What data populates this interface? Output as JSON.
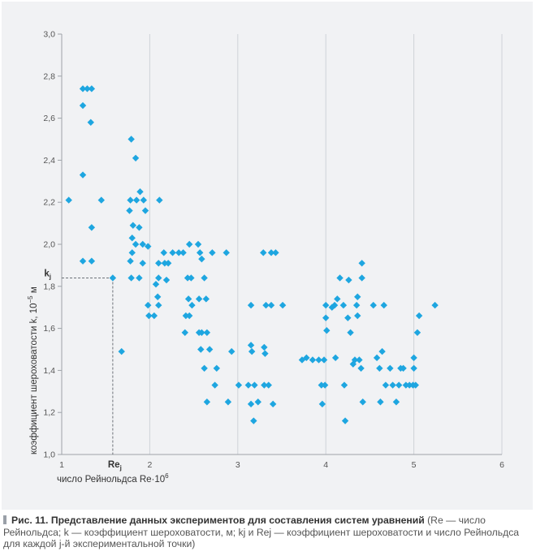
{
  "chart_data": {
    "type": "scatter",
    "xlabel": "число Рейнольдса Re·10",
    "xlabel_sup": "6",
    "ylabel": "коэффициент шероховатости k, 10",
    "ylabel_sup": "−5",
    "ylabel_unit": " м",
    "xlim": [
      1,
      6
    ],
    "ylim": [
      1.0,
      3.0
    ],
    "x_ticks": [
      1,
      2,
      3,
      4,
      5,
      6
    ],
    "x_tick_labels": [
      "1",
      "2",
      "3",
      "4",
      "5",
      "6"
    ],
    "y_ticks": [
      1.0,
      1.2,
      1.4,
      1.6,
      1.8,
      2.0,
      2.2,
      2.4,
      2.6,
      2.8,
      3.0
    ],
    "y_tick_labels": [
      "1,0",
      "1,2",
      "1,4",
      "1,6",
      "1,8",
      "2,0",
      "2,2",
      "2,4",
      "2,6",
      "2,8",
      "3,0"
    ],
    "grid": "vertical",
    "marker_color": "#1ea6e0",
    "reference_point": {
      "x": 1.58,
      "y": 1.84,
      "x_label": "Re",
      "x_label_sub": "j",
      "y_label": "k",
      "y_label_sub": "j"
    },
    "points": [
      [
        1.08,
        2.21
      ],
      [
        1.24,
        2.74
      ],
      [
        1.29,
        2.74
      ],
      [
        1.34,
        2.74
      ],
      [
        1.24,
        2.66
      ],
      [
        1.33,
        2.58
      ],
      [
        1.24,
        2.33
      ],
      [
        1.45,
        2.21
      ],
      [
        1.34,
        2.08
      ],
      [
        1.24,
        1.92
      ],
      [
        1.34,
        1.92
      ],
      [
        1.58,
        1.84
      ],
      [
        1.68,
        1.49
      ],
      [
        1.79,
        2.5
      ],
      [
        1.84,
        2.41
      ],
      [
        1.78,
        2.21
      ],
      [
        1.85,
        2.21
      ],
      [
        1.89,
        2.25
      ],
      [
        1.93,
        2.21
      ],
      [
        1.77,
        2.16
      ],
      [
        1.95,
        2.16
      ],
      [
        1.81,
        2.09
      ],
      [
        1.88,
        2.08
      ],
      [
        1.8,
        2.03
      ],
      [
        1.84,
        2.0
      ],
      [
        1.92,
        2.0
      ],
      [
        1.98,
        1.99
      ],
      [
        1.8,
        1.96
      ],
      [
        1.78,
        1.92
      ],
      [
        1.92,
        1.91
      ],
      [
        1.79,
        1.84
      ],
      [
        1.88,
        1.84
      ],
      [
        2.11,
        2.21
      ],
      [
        1.98,
        1.71
      ],
      [
        2.05,
        1.66
      ],
      [
        1.99,
        1.66
      ],
      [
        2.07,
        1.81
      ],
      [
        2.1,
        1.84
      ],
      [
        2.09,
        1.75
      ],
      [
        2.1,
        1.71
      ],
      [
        2.1,
        1.91
      ],
      [
        2.16,
        1.96
      ],
      [
        2.17,
        1.91
      ],
      [
        2.21,
        1.91
      ],
      [
        2.19,
        1.83
      ],
      [
        2.26,
        1.96
      ],
      [
        2.33,
        1.96
      ],
      [
        2.38,
        1.96
      ],
      [
        2.45,
        2.0
      ],
      [
        2.55,
        2.0
      ],
      [
        2.43,
        1.84
      ],
      [
        2.47,
        1.84
      ],
      [
        2.41,
        1.66
      ],
      [
        2.44,
        1.74
      ],
      [
        2.4,
        1.58
      ],
      [
        2.45,
        1.66
      ],
      [
        2.48,
        1.71
      ],
      [
        2.56,
        1.74
      ],
      [
        2.57,
        1.96
      ],
      [
        2.59,
        1.93
      ],
      [
        2.56,
        1.58
      ],
      [
        2.58,
        1.5
      ],
      [
        2.62,
        1.84
      ],
      [
        2.64,
        1.74
      ],
      [
        2.59,
        1.58
      ],
      [
        2.65,
        1.58
      ],
      [
        2.68,
        1.5
      ],
      [
        2.62,
        1.41
      ],
      [
        2.65,
        1.25
      ],
      [
        2.71,
        1.96
      ],
      [
        2.76,
        1.41
      ],
      [
        2.74,
        1.33
      ],
      [
        2.87,
        1.96
      ],
      [
        2.89,
        1.25
      ],
      [
        2.93,
        1.49
      ],
      [
        3.01,
        1.33
      ],
      [
        3.15,
        1.52
      ],
      [
        3.12,
        1.33
      ],
      [
        3.15,
        1.71
      ],
      [
        3.16,
        1.49
      ],
      [
        3.15,
        1.24
      ],
      [
        3.19,
        1.33
      ],
      [
        3.23,
        1.25
      ],
      [
        3.18,
        1.16
      ],
      [
        3.29,
        1.96
      ],
      [
        3.3,
        1.51
      ],
      [
        3.31,
        1.48
      ],
      [
        3.3,
        1.33
      ],
      [
        3.35,
        1.33
      ],
      [
        3.32,
        1.71
      ],
      [
        3.38,
        1.96
      ],
      [
        3.38,
        1.71
      ],
      [
        3.43,
        1.96
      ],
      [
        3.4,
        1.24
      ],
      [
        3.51,
        1.71
      ],
      [
        3.73,
        1.45
      ],
      [
        3.78,
        1.46
      ],
      [
        3.85,
        1.45
      ],
      [
        3.92,
        1.45
      ],
      [
        3.95,
        1.33
      ],
      [
        3.96,
        1.24
      ],
      [
        3.98,
        1.45
      ],
      [
        3.99,
        1.33
      ],
      [
        4.0,
        1.71
      ],
      [
        4.0,
        1.65
      ],
      [
        4.01,
        1.59
      ],
      [
        4.07,
        1.7
      ],
      [
        4.1,
        1.71
      ],
      [
        4.11,
        1.46
      ],
      [
        4.13,
        1.74
      ],
      [
        4.16,
        1.84
      ],
      [
        4.2,
        1.71
      ],
      [
        4.21,
        1.33
      ],
      [
        4.22,
        1.16
      ],
      [
        4.25,
        1.65
      ],
      [
        4.26,
        1.83
      ],
      [
        4.28,
        1.58
      ],
      [
        4.31,
        1.43
      ],
      [
        4.33,
        1.45
      ],
      [
        4.35,
        1.71
      ],
      [
        4.36,
        1.66
      ],
      [
        4.36,
        1.75
      ],
      [
        4.38,
        1.45
      ],
      [
        4.4,
        1.41
      ],
      [
        4.41,
        1.91
      ],
      [
        4.41,
        1.84
      ],
      [
        4.42,
        1.25
      ],
      [
        4.54,
        1.71
      ],
      [
        4.58,
        1.46
      ],
      [
        4.61,
        1.41
      ],
      [
        4.62,
        1.25
      ],
      [
        4.64,
        1.49
      ],
      [
        4.66,
        1.71
      ],
      [
        4.68,
        1.33
      ],
      [
        4.73,
        1.41
      ],
      [
        4.76,
        1.33
      ],
      [
        4.8,
        1.25
      ],
      [
        4.83,
        1.33
      ],
      [
        4.85,
        1.41
      ],
      [
        4.88,
        1.41
      ],
      [
        4.91,
        1.33
      ],
      [
        4.95,
        1.33
      ],
      [
        5.0,
        1.41
      ],
      [
        5.02,
        1.33
      ],
      [
        5.04,
        1.58
      ],
      [
        5.06,
        1.66
      ],
      [
        5.0,
        1.46
      ],
      [
        4.99,
        1.33
      ],
      [
        5.24,
        1.71
      ]
    ]
  },
  "caption": {
    "head": "Рис. 11. Представление данных экспериментов для составления систем уравнений",
    "body": " (Re — число Рейнольдса; k — коэффициент шероховатости, м; kj и Rej — коэффициент шероховатости и число Рейнольдса для каждой j-й экспериментальной точки)"
  }
}
